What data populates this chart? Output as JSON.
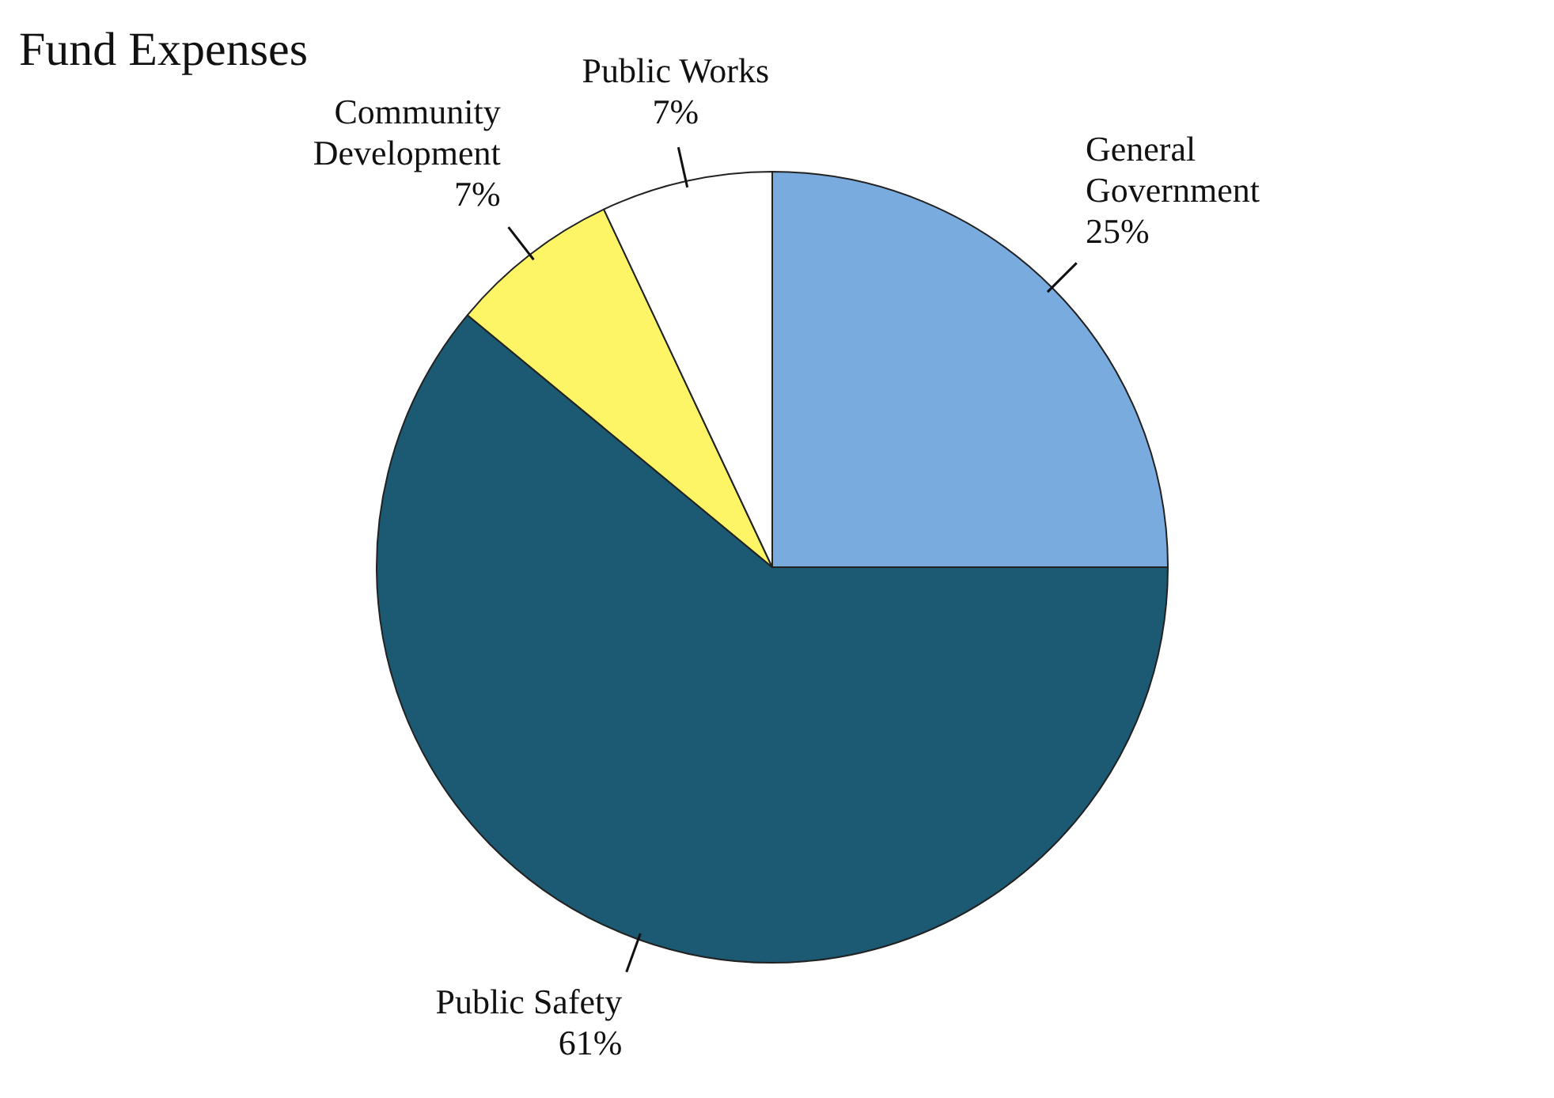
{
  "chart_data": {
    "type": "pie",
    "title": "Fund Expenses",
    "categories": [
      "General Government",
      "Public Safety",
      "Community Development",
      "Public Works"
    ],
    "values": [
      25,
      61,
      7,
      7
    ],
    "value_labels": [
      "25%",
      "61%",
      "7%",
      "7%"
    ],
    "colors": [
      "#79abdf",
      "#1c5a73",
      "#fdf566",
      "#ffffff"
    ],
    "legend": false
  }
}
